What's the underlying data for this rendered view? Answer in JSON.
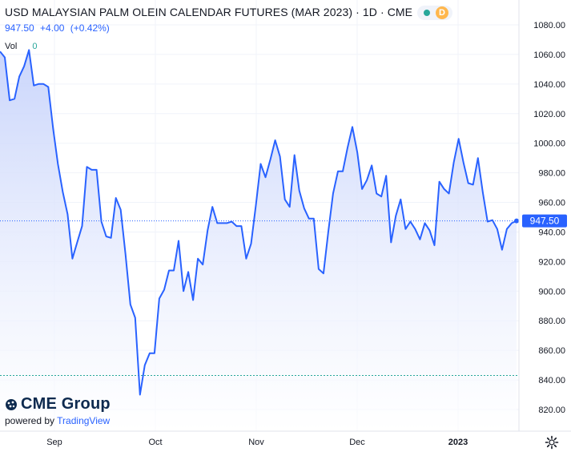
{
  "header": {
    "title": "USD MALAYSIAN PALM OLEIN CALENDAR FUTURES (MAR 2023) · 1D · CME",
    "price": "947.50",
    "change": "+4.00",
    "change_pct": "(+0.42%)",
    "vol_label": "Vol",
    "vol_value": "0",
    "status_badge": "D"
  },
  "branding": {
    "logo_text": "CME Group",
    "powered_by": "powered by",
    "provider": "TradingView"
  },
  "colors": {
    "line": "#2962ff",
    "area_top": "#c7d3fb",
    "area_bottom": "#ffffff",
    "grid": "#f0f3fa",
    "last_price_tag": "#2962ff",
    "teal_line": "#26a69a"
  },
  "icons": [
    "settings-gear-icon",
    "cme-globe-icon"
  ],
  "chart_data": {
    "type": "area",
    "title": "USD MALAYSIAN PALM OLEIN CALENDAR FUTURES (MAR 2023) · 1D · CME",
    "x_tick_labels": [
      "Sep",
      "Oct",
      "Nov",
      "Dec",
      "2023"
    ],
    "y_ticks": [
      820,
      840,
      860,
      880,
      900,
      920,
      940,
      960,
      980,
      1000,
      1020,
      1040,
      1060,
      1080
    ],
    "y_tick_labels": [
      "820.00",
      "840.00",
      "860.00",
      "880.00",
      "900.00",
      "920.00",
      "940.00",
      "960.00",
      "980.00",
      "1000.00",
      "1020.00",
      "1040.00",
      "1060.00",
      "1080.00"
    ],
    "ylim": [
      811,
      1087
    ],
    "last_price": 947.5,
    "last_price_label": "947.50",
    "reference_line": 843,
    "grid": true,
    "series": [
      {
        "values": [
          1062,
          1058,
          1029,
          1030,
          1045,
          1052,
          1063,
          1039,
          1040,
          1040,
          1038,
          1010,
          986,
          967,
          952,
          922,
          933,
          944,
          984,
          982,
          982,
          947,
          937,
          936,
          963,
          955,
          925,
          891,
          882,
          830,
          850,
          858,
          858,
          895,
          901,
          914,
          914,
          934,
          900,
          913,
          894,
          922,
          918,
          941,
          957,
          946,
          946,
          946,
          947,
          944,
          944,
          922,
          932,
          958,
          986,
          977,
          989,
          1002,
          991,
          962,
          957,
          992,
          968,
          956,
          949,
          949,
          915,
          912,
          940,
          966,
          981,
          981,
          997,
          1011,
          994,
          969,
          975,
          985,
          966,
          964,
          978,
          933,
          951,
          962,
          942,
          947,
          942,
          935,
          946,
          941,
          931,
          974,
          969,
          966,
          987,
          1003,
          987,
          973,
          972,
          990,
          967,
          947,
          948,
          942,
          928,
          942,
          946,
          947.5
        ]
      }
    ]
  }
}
